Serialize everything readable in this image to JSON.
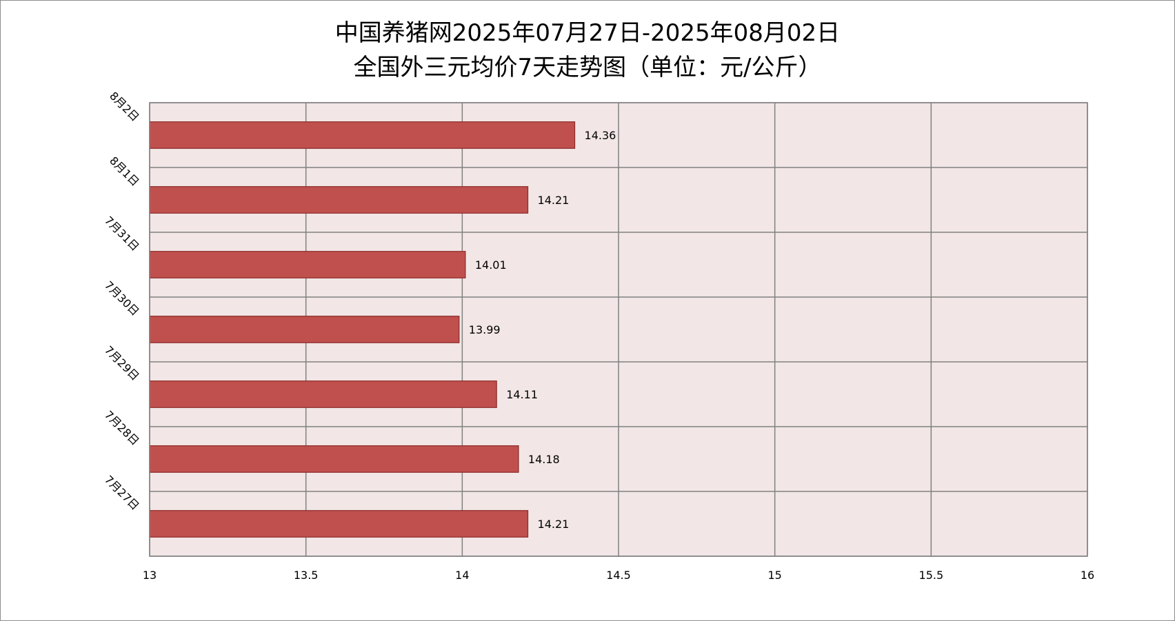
{
  "chart_data": {
    "type": "bar",
    "orientation": "horizontal",
    "title_lines": [
      "中国养猪网2025年07月27日-2025年08月02日",
      "全国外三元均价7天走势图（单位：元/公斤）"
    ],
    "categories": [
      "7月27日",
      "7月28日",
      "7月29日",
      "7月30日",
      "7月31日",
      "8月1日",
      "8月2日"
    ],
    "values": [
      14.21,
      14.18,
      14.11,
      13.99,
      14.01,
      14.21,
      14.36
    ],
    "data_labels": [
      "14.21",
      "14.18",
      "14.11",
      "13.99",
      "14.01",
      "14.21",
      "14.36"
    ],
    "x_ticks": [
      "13",
      "13.5",
      "14",
      "14.5",
      "15",
      "15.5",
      "16"
    ],
    "xlim": [
      13,
      16
    ],
    "xlabel": "",
    "ylabel": "",
    "grid": true,
    "legend": "none",
    "colors": {
      "bar_fill": "#C0504D",
      "bar_stroke": "#8B2A28",
      "plot_background": "#F2E6E6",
      "grid_line": "#808080"
    }
  }
}
